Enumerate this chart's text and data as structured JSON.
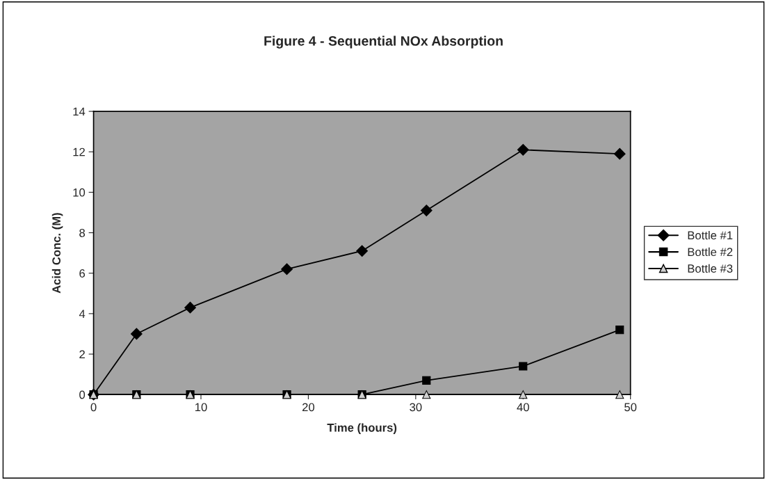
{
  "chart_data": {
    "type": "line",
    "title": "Figure 4 - Sequential NOx Absorption",
    "xlabel": "Time (hours)",
    "ylabel": "Acid Conc. (M)",
    "x": [
      0,
      4,
      9,
      18,
      25,
      31,
      40,
      49
    ],
    "series": [
      {
        "name": "Bottle #1",
        "color": "#000000",
        "marker": "diamond",
        "values": [
          0,
          3.0,
          4.3,
          6.2,
          7.1,
          9.1,
          12.1,
          11.9
        ]
      },
      {
        "name": "Bottle #2",
        "color": "#000000",
        "marker": "square",
        "values": [
          0,
          0,
          0,
          0,
          0,
          0.7,
          1.4,
          3.2
        ]
      },
      {
        "name": "Bottle #3",
        "color": "#000000",
        "marker": "triangle",
        "values": [
          0,
          0,
          0,
          0,
          0,
          0,
          0,
          0
        ]
      }
    ],
    "xlim": [
      0,
      50
    ],
    "xticks": [
      0,
      10,
      20,
      30,
      40,
      50
    ],
    "ylim": [
      0,
      14
    ],
    "yticks": [
      0,
      2,
      4,
      6,
      8,
      10,
      12,
      14
    ],
    "grid": false,
    "legend": "right",
    "line_style": "solid"
  }
}
